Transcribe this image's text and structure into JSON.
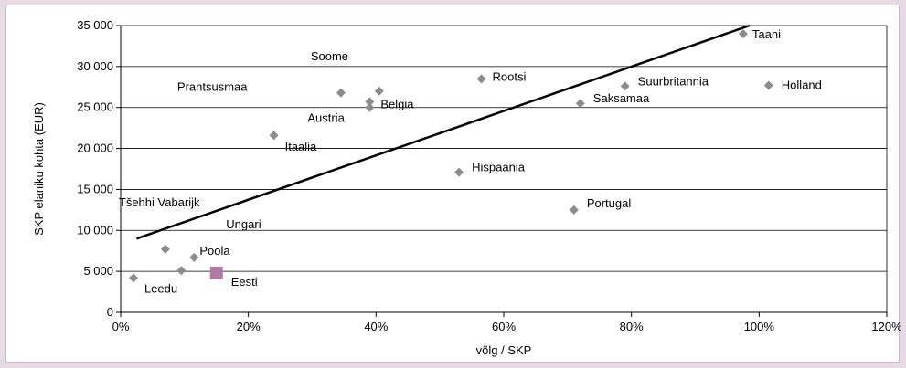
{
  "chart_data": {
    "type": "scatter",
    "title": "",
    "xlabel": "võlg / SKP",
    "ylabel": "SKP elaniku kohta (EUR)",
    "xlim": [
      0,
      120
    ],
    "ylim": [
      0,
      35000
    ],
    "x_ticks": [
      0,
      20,
      40,
      60,
      80,
      100,
      120
    ],
    "x_tick_labels": [
      "0%",
      "20%",
      "40%",
      "60%",
      "80%",
      "100%",
      "120%"
    ],
    "y_ticks": [
      0,
      5000,
      10000,
      15000,
      20000,
      25000,
      30000,
      35000
    ],
    "y_tick_labels": [
      "0",
      "5 000",
      "10 000",
      "15 000",
      "20 000",
      "25 000",
      "30 000",
      "35 000"
    ],
    "grid": "horizontal",
    "marker_color": "#8c8c8c",
    "highlight_color": "#b07aa1",
    "trendline": {
      "x": [
        2.5,
        98.5
      ],
      "y": [
        9000,
        35000
      ],
      "color": "#000000"
    },
    "points": [
      {
        "label": "Taani",
        "x": 97.5,
        "y": 34000
      },
      {
        "label": "Holland",
        "x": 101.5,
        "y": 27700
      },
      {
        "label": "Suurbritannia",
        "x": 79,
        "y": 27600
      },
      {
        "label": "Saksamaa",
        "x": 72,
        "y": 25500
      },
      {
        "label": "Rootsi",
        "x": 56.5,
        "y": 28500
      },
      {
        "label": "Soome",
        "x": 40.5,
        "y": 27000
      },
      {
        "label": "Prantsusmaa",
        "x": 34.5,
        "y": 26800
      },
      {
        "label": "Belgia",
        "x": 39,
        "y": 25700
      },
      {
        "label": "Austria",
        "x": 39,
        "y": 25000
      },
      {
        "label": "Itaalia",
        "x": 24,
        "y": 21600
      },
      {
        "label": "Hispaania",
        "x": 53,
        "y": 17100
      },
      {
        "label": "Portugal",
        "x": 71,
        "y": 12500
      },
      {
        "label": "Tšehhi Vabarijk",
        "x": 7,
        "y": 7700
      },
      {
        "label": "Ungari",
        "x": 11.5,
        "y": 6700
      },
      {
        "label": "Poola",
        "x": 9.5,
        "y": 5100
      },
      {
        "label": "Leedu",
        "x": 2,
        "y": 4200
      },
      {
        "label": "Eesti",
        "x": 15,
        "y": 4800,
        "highlight": true
      }
    ]
  }
}
